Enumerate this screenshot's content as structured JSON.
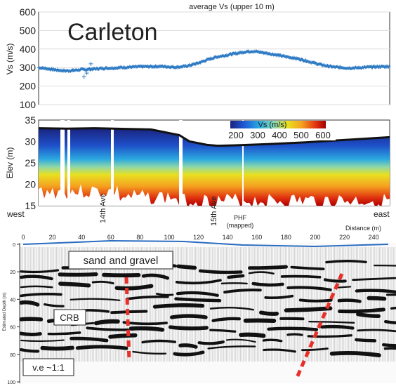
{
  "top_chart": {
    "title": "average Vs (upper 10 m)",
    "site_label": "Carleton",
    "ylabel": "Vs (m/s)",
    "yticks": [
      "600",
      "500",
      "400",
      "300",
      "200",
      "100"
    ]
  },
  "middle_chart": {
    "ylabel": "Elev (m)",
    "yticks": [
      "35",
      "30",
      "25",
      "20",
      "15"
    ],
    "colorbar_title": "Vs (m/s)",
    "colorbar_ticks": [
      "200",
      "300",
      "400",
      "500",
      "600"
    ],
    "west_label": "west",
    "east_label": "east",
    "street_1": "14th Ave",
    "street_2": "15th Ave",
    "phf_label": "PHF",
    "phf_sub": "(mapped)",
    "colors": [
      "#1a237e",
      "#1e5bd8",
      "#29a9e0",
      "#7fd4b8",
      "#e8e020",
      "#f5a020",
      "#e03010",
      "#a00000"
    ]
  },
  "bottom_chart": {
    "distance_label": "Distance (m)",
    "depth_label": "Estimated Depth (m)",
    "xticks": [
      "0",
      "20",
      "40",
      "60",
      "80",
      "100",
      "120",
      "140",
      "160",
      "180",
      "200",
      "220",
      "240"
    ],
    "depthticks": [
      "0",
      "20",
      "40",
      "60",
      "80",
      "100"
    ],
    "sand_label": "sand and gravel",
    "crb_label": "CRB",
    "ve_label": "v.e ~1:1",
    "fault_color": "#e8302a",
    "surface_color": "#2a6cc0"
  },
  "chart_data": {
    "type": "scatter",
    "x_range": [
      0,
      255
    ],
    "ylim": [
      100,
      600
    ],
    "series": [
      {
        "x": [
          0,
          5,
          10,
          15,
          20,
          25,
          30,
          35,
          40,
          45,
          50,
          55,
          60,
          65,
          70,
          75,
          80,
          85,
          90,
          95,
          100,
          105,
          110,
          115,
          120,
          125,
          130,
          135,
          140,
          145,
          150,
          155,
          160,
          165,
          170,
          175,
          180,
          185,
          190,
          195,
          200,
          205,
          210,
          215,
          220,
          225,
          230,
          235,
          240,
          245,
          250,
          255
        ],
        "y": [
          300,
          295,
          290,
          285,
          282,
          285,
          288,
          290,
          292,
          295,
          297,
          298,
          300,
          302,
          303,
          305,
          305,
          306,
          306,
          304,
          302,
          305,
          312,
          322,
          335,
          348,
          358,
          365,
          372,
          378,
          385,
          388,
          384,
          378,
          372,
          365,
          358,
          352,
          345,
          335,
          325,
          315,
          308,
          302,
          300,
          298,
          298,
          300,
          302,
          304,
          305,
          306
        ]
      }
    ],
    "outliers": [
      {
        "x": 33,
        "y": 250
      },
      {
        "x": 35,
        "y": 270
      },
      {
        "x": 38,
        "y": 320
      },
      {
        "x": 25,
        "y": 285
      }
    ]
  }
}
